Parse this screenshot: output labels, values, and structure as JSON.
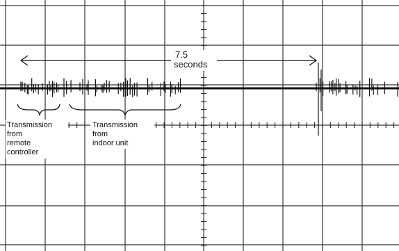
{
  "annotations": {
    "duration": {
      "value": "7.5",
      "unit": "seconds"
    },
    "remote_label": [
      "Transmission",
      "from",
      "remote",
      "controller"
    ],
    "indoor_label": [
      "Transmission",
      "from",
      "indoor unit"
    ]
  }
}
